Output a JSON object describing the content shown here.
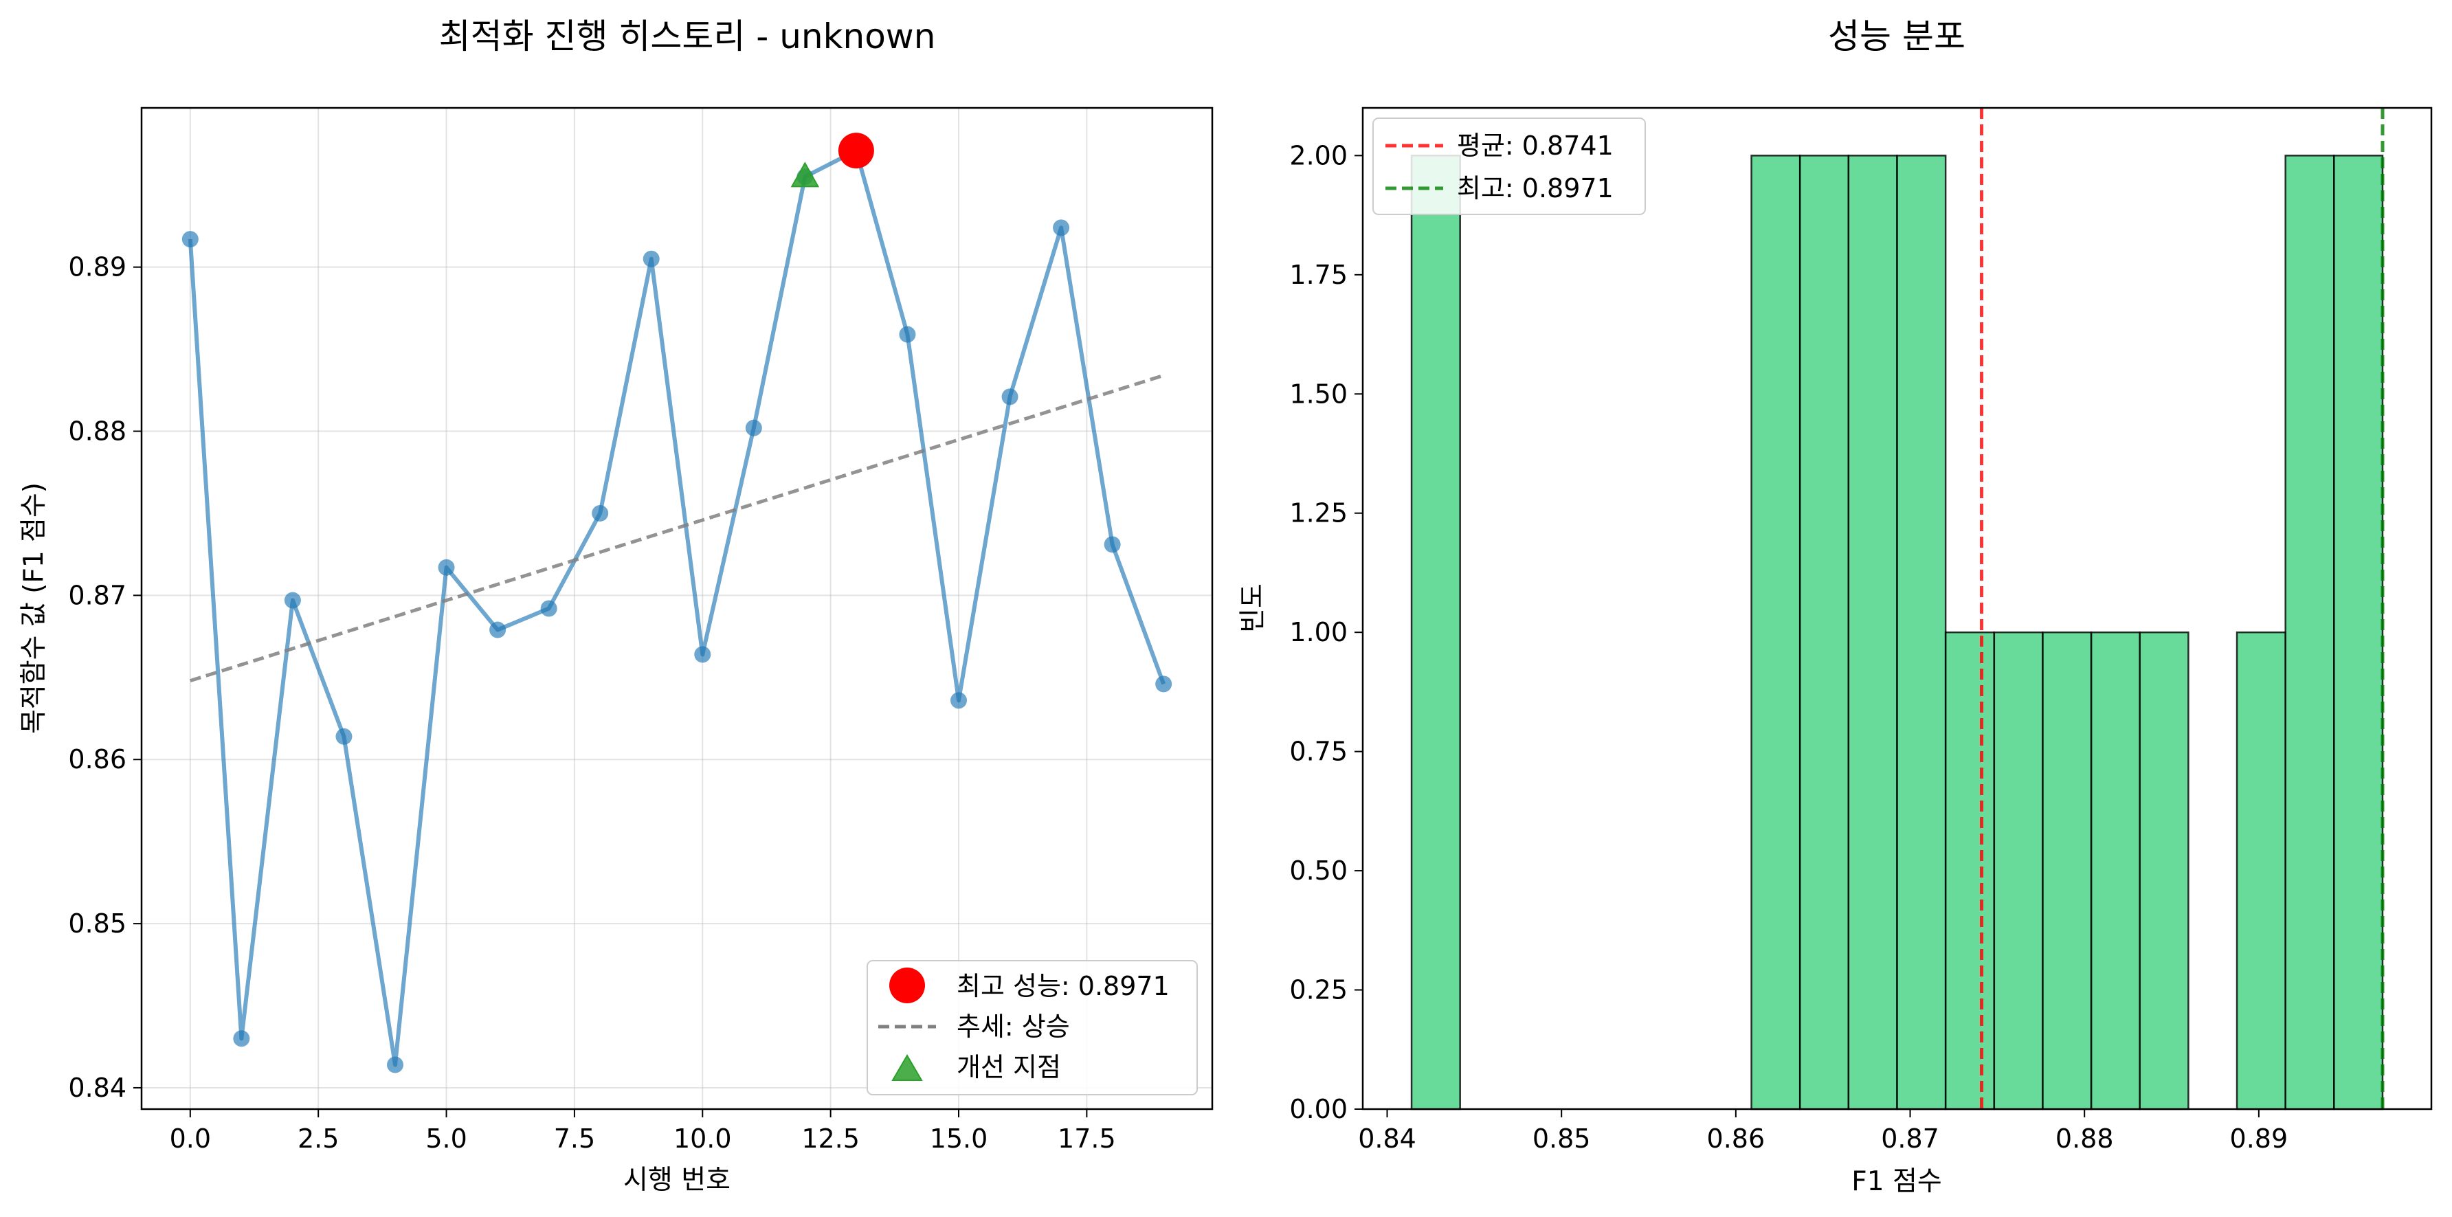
{
  "figure": {
    "background": "#ffffff"
  },
  "chart_data": [
    {
      "type": "line",
      "title": "최적화 진행 히스토리 - unknown",
      "xlabel": "시행 번호",
      "ylabel": "목적함수 값 (F1 점수)",
      "xlim": [
        -0.95,
        19.95
      ],
      "ylim": [
        0.8387,
        0.8997
      ],
      "xticks": [
        0.0,
        2.5,
        5.0,
        7.5,
        10.0,
        12.5,
        15.0,
        17.5
      ],
      "xtick_labels": [
        "0.0",
        "2.5",
        "5.0",
        "7.5",
        "10.0",
        "12.5",
        "15.0",
        "17.5"
      ],
      "yticks": [
        0.84,
        0.85,
        0.86,
        0.87,
        0.88,
        0.89
      ],
      "ytick_labels": [
        "0.84",
        "0.85",
        "0.86",
        "0.87",
        "0.88",
        "0.89"
      ],
      "grid": true,
      "legend_position": "lower-right",
      "series": [
        {
          "kind": "line-markers",
          "color": "#1f77b4",
          "x": [
            0,
            1,
            2,
            3,
            4,
            5,
            6,
            7,
            8,
            9,
            10,
            11,
            12,
            13,
            14,
            15,
            16,
            17,
            18,
            19
          ],
          "y": [
            0.8917,
            0.843,
            0.8697,
            0.8614,
            0.8414,
            0.8717,
            0.8679,
            0.8692,
            0.875,
            0.8905,
            0.8664,
            0.8802,
            0.8955,
            0.8971,
            0.8859,
            0.8636,
            0.8821,
            0.8924,
            0.8731,
            0.8646
          ]
        },
        {
          "name": "최고 성능: 0.8971",
          "kind": "point",
          "color": "#ff0000",
          "x": [
            13
          ],
          "y": [
            0.8971
          ]
        },
        {
          "name": "추세: 상승",
          "kind": "dashed-line",
          "color": "#808080",
          "x": [
            0,
            19
          ],
          "y": [
            0.8648,
            0.8834
          ]
        },
        {
          "name": "개선 지점",
          "kind": "triangle-points",
          "color": "#2ca02c",
          "x": [
            12
          ],
          "y": [
            0.8955
          ]
        }
      ]
    },
    {
      "type": "bar",
      "subtype": "histogram",
      "title": "성능 분포",
      "xlabel": "F1 점수",
      "ylabel": "빈도",
      "xlim": [
        0.8386,
        0.8999
      ],
      "ylim": [
        0,
        2.1
      ],
      "xticks": [
        0.84,
        0.85,
        0.86,
        0.87,
        0.88,
        0.89
      ],
      "xtick_labels": [
        "0.84",
        "0.85",
        "0.86",
        "0.87",
        "0.88",
        "0.89"
      ],
      "yticks": [
        0,
        0.25,
        0.5,
        0.75,
        1.0,
        1.25,
        1.5,
        1.75,
        2.0
      ],
      "ytick_labels": [
        "0.00",
        "0.25",
        "0.50",
        "0.75",
        "1.00",
        "1.25",
        "1.50",
        "1.75",
        "2.00"
      ],
      "grid": false,
      "legend_position": "top-left",
      "bar_color": "#2ecc71",
      "bin_start": 0.8414,
      "bin_width": 0.002785,
      "counts": [
        2,
        0,
        0,
        0,
        0,
        0,
        0,
        2,
        2,
        2,
        2,
        1,
        1,
        1,
        1,
        1,
        0,
        1,
        2,
        2
      ],
      "lines": [
        {
          "name": "평균: 0.8741",
          "value": 0.8741,
          "color": "#ff0000"
        },
        {
          "name": "최고: 0.8971",
          "value": 0.8971,
          "color": "#008000"
        }
      ]
    }
  ]
}
